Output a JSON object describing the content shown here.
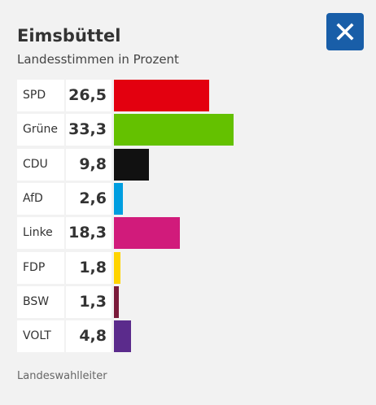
{
  "header": {
    "title": "Eimsbüttel",
    "subtitle": "Landesstimmen in Prozent"
  },
  "close_button": {
    "icon": "close-icon",
    "color": "#195ea8"
  },
  "source": "Landeswahlleiter",
  "chart_data": {
    "type": "bar",
    "orientation": "horizontal",
    "categories": [
      "SPD",
      "Grüne",
      "CDU",
      "AfD",
      "Linke",
      "FDP",
      "BSW",
      "VOLT"
    ],
    "values": [
      26.5,
      33.3,
      9.8,
      2.6,
      18.3,
      1.8,
      1.3,
      4.8
    ],
    "value_labels": [
      "26,5",
      "33,3",
      "9,8",
      "2,6",
      "18,3",
      "1,8",
      "1,3",
      "4,8"
    ],
    "colors": [
      "#e3000f",
      "#64c100",
      "#111111",
      "#009ee0",
      "#d11b7b",
      "#ffd400",
      "#7a1a3a",
      "#5b2b8c"
    ],
    "title": "Eimsbüttel",
    "subtitle": "Landesstimmen in Prozent",
    "xlim": [
      0,
      50
    ],
    "grid": false,
    "legend": "none"
  }
}
